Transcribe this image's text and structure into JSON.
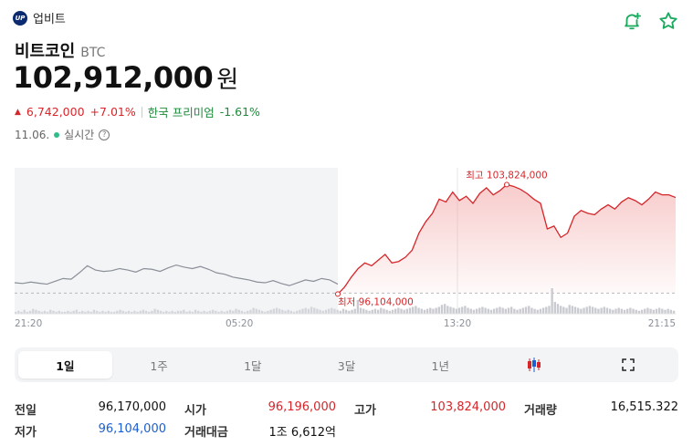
{
  "exchange": {
    "logo_text": "UP",
    "name": "업비트"
  },
  "coin": {
    "name": "비트코인",
    "symbol": "BTC"
  },
  "price": {
    "value": "102,912,000",
    "unit": "원"
  },
  "change": {
    "arrow": "▲",
    "amount": "6,742,000",
    "percent": "+7.01%",
    "premium_label": "한국 프리미엄",
    "premium_value": "-1.61%"
  },
  "date_row": {
    "date": "11.06.",
    "realtime_label": "실시간",
    "help": "?"
  },
  "colors": {
    "up": "#d6262a",
    "down": "#1c5fd0",
    "premium": "#1d8a3a",
    "live": "#2fbe8a"
  },
  "chart_data": {
    "type": "line",
    "annotations": {
      "high": "최고 103,824,000",
      "low": "최저 96,104,000"
    },
    "high": 103824000,
    "low": 96104000,
    "x_ticks": [
      "21:20",
      "05:20",
      "13:20",
      "21:15"
    ],
    "series": [
      {
        "values": [
          96900000,
          96850000,
          96950000,
          96870000,
          96800000,
          97000000,
          97200000,
          97150000,
          97600000,
          98100000,
          97800000,
          97700000,
          97750000,
          97900000,
          97800000,
          97650000,
          97900000,
          97850000,
          97700000,
          97950000,
          98150000,
          98000000,
          97900000,
          98050000,
          97850000,
          97600000,
          97500000,
          97300000,
          97200000,
          97100000,
          96950000,
          96900000,
          97050000,
          96850000,
          96700000,
          96900000,
          97100000,
          97000000,
          97200000,
          97100000,
          96800000
        ]
      },
      {
        "values": [
          96104000,
          96600000,
          97300000,
          97900000,
          98300000,
          98100000,
          98500000,
          98900000,
          98300000,
          98400000,
          98700000,
          99200000,
          100400000,
          101200000,
          101800000,
          102800000,
          102600000,
          103300000,
          102700000,
          103000000,
          102500000,
          103200000,
          103600000,
          103100000,
          103400000,
          103824000,
          103700000,
          103500000,
          103200000,
          102800000,
          102500000,
          100700000,
          100900000,
          100100000,
          100400000,
          101600000,
          102000000,
          101800000,
          101700000,
          102100000,
          102400000,
          102100000,
          102600000,
          102900000,
          102700000,
          102400000,
          102800000,
          103300000,
          103100000,
          103100000,
          102912000
        ]
      }
    ],
    "volume": [
      2,
      3,
      2,
      4,
      2,
      3,
      5,
      4,
      3,
      2,
      3,
      2,
      4,
      3,
      2,
      3,
      2,
      2,
      3,
      2,
      3,
      4,
      2,
      3,
      2,
      3,
      2,
      4,
      3,
      2,
      3,
      2,
      3,
      2,
      2,
      3,
      4,
      3,
      2,
      3,
      2,
      3,
      2,
      3,
      4,
      3,
      2,
      3,
      5,
      4,
      3,
      2,
      3,
      2,
      3,
      2,
      3,
      3,
      4,
      2,
      3,
      2,
      4,
      3,
      2,
      3,
      2,
      3,
      4,
      3,
      2,
      3,
      2,
      3,
      4,
      3,
      5,
      4,
      3,
      2,
      3,
      4,
      6,
      5,
      4,
      3,
      2,
      3,
      4,
      5,
      6,
      5,
      4,
      3,
      4,
      3,
      2,
      3,
      4,
      5,
      6,
      5,
      7,
      6,
      5,
      4,
      3,
      4,
      5,
      6,
      5,
      4,
      3,
      5,
      4,
      3,
      4,
      5,
      14,
      6,
      5,
      4,
      3,
      4,
      5,
      4,
      6,
      5,
      4,
      3,
      4,
      5,
      6,
      5,
      4,
      5,
      6,
      7,
      8,
      6,
      5,
      4,
      5,
      6,
      5,
      6,
      7,
      9,
      10,
      8,
      7,
      6,
      5,
      6,
      7,
      8,
      6,
      5,
      4,
      5,
      6,
      7,
      6,
      5,
      4,
      5,
      6,
      7,
      6,
      5,
      6,
      7,
      5,
      4,
      5,
      6,
      7,
      8,
      6,
      5,
      4,
      5,
      6,
      7,
      8,
      26,
      12,
      10,
      8,
      7,
      6,
      9,
      8,
      7,
      6,
      5,
      6,
      7,
      8,
      7,
      6,
      5,
      6,
      7,
      6,
      5,
      4,
      5,
      6,
      5,
      4,
      5,
      6,
      5,
      4,
      3,
      4,
      5,
      6,
      5,
      4,
      5,
      6,
      5,
      4,
      5,
      4,
      3
    ]
  },
  "tabs": [
    "1일",
    "1주",
    "1달",
    "3달",
    "1년"
  ],
  "stats": {
    "rows": [
      [
        {
          "label": "전일",
          "value": "96,170,000",
          "color": "normal"
        },
        {
          "label": "시가",
          "value": "96,196,000",
          "color": "red"
        },
        {
          "label": "고가",
          "value": "103,824,000",
          "color": "red"
        },
        {
          "label": "거래량",
          "value": "16,515.322",
          "color": "normal"
        }
      ],
      [
        {
          "label": "저가",
          "value": "96,104,000",
          "color": "blue"
        },
        {
          "label": "거래대금",
          "value": "1조 6,612억",
          "color": "normal"
        }
      ]
    ]
  }
}
